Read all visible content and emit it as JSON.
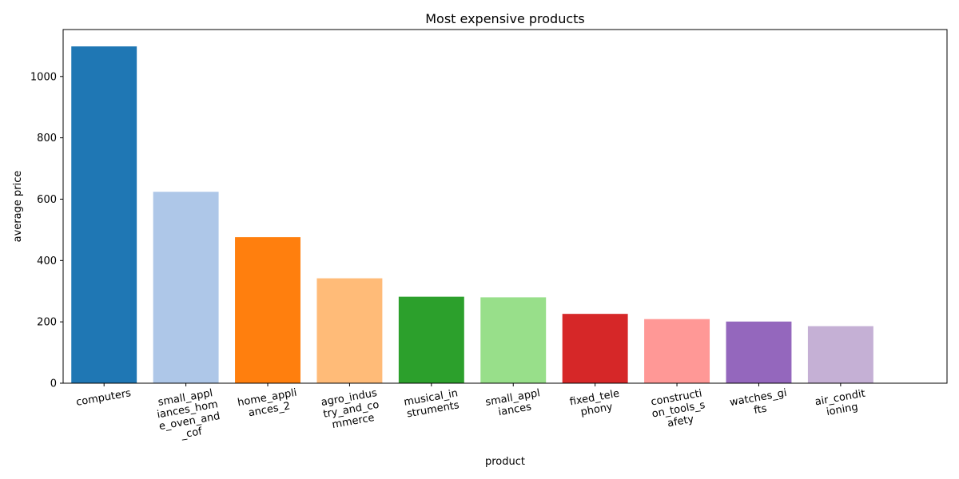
{
  "chart_data": {
    "type": "bar",
    "title": "Most expensive products",
    "xlabel": "product",
    "ylabel": "average price",
    "categories": [
      "computers",
      "small_appliances_home_oven_and_cof",
      "home_appliances_2",
      "agro_industry_and_commerce",
      "musical_instruments",
      "small_appliances",
      "fixed_telephony",
      "construction_tools_safety",
      "watches_gifts",
      "air_conditioning"
    ],
    "tick_labels": [
      [
        "computers"
      ],
      [
        "small_appl",
        "iances_hom",
        "e_oven_and",
        "_cof"
      ],
      [
        "home_appli",
        "ances_2"
      ],
      [
        "agro_indus",
        "try_and_co",
        "mmerce"
      ],
      [
        "musical_in",
        "struments"
      ],
      [
        "small_appl",
        "iances"
      ],
      [
        "fixed_tele",
        "phony"
      ],
      [
        "constructi",
        "on_tools_s",
        "afety"
      ],
      [
        "watches_gi",
        "fts"
      ],
      [
        "air_condit",
        "ioning"
      ]
    ],
    "values": [
      1098,
      624,
      476,
      342,
      282,
      280,
      226,
      209,
      201,
      186
    ],
    "colors": [
      "#1f77b4",
      "#aec7e8",
      "#ff7f0e",
      "#ffbb78",
      "#2ca02c",
      "#98df8a",
      "#d62728",
      "#ff9896",
      "#9467bd",
      "#c5b0d5"
    ],
    "ylim": [
      0,
      1153
    ],
    "yticks": [
      0,
      200,
      400,
      600,
      800,
      1000
    ],
    "grid": false,
    "legend": "none"
  }
}
